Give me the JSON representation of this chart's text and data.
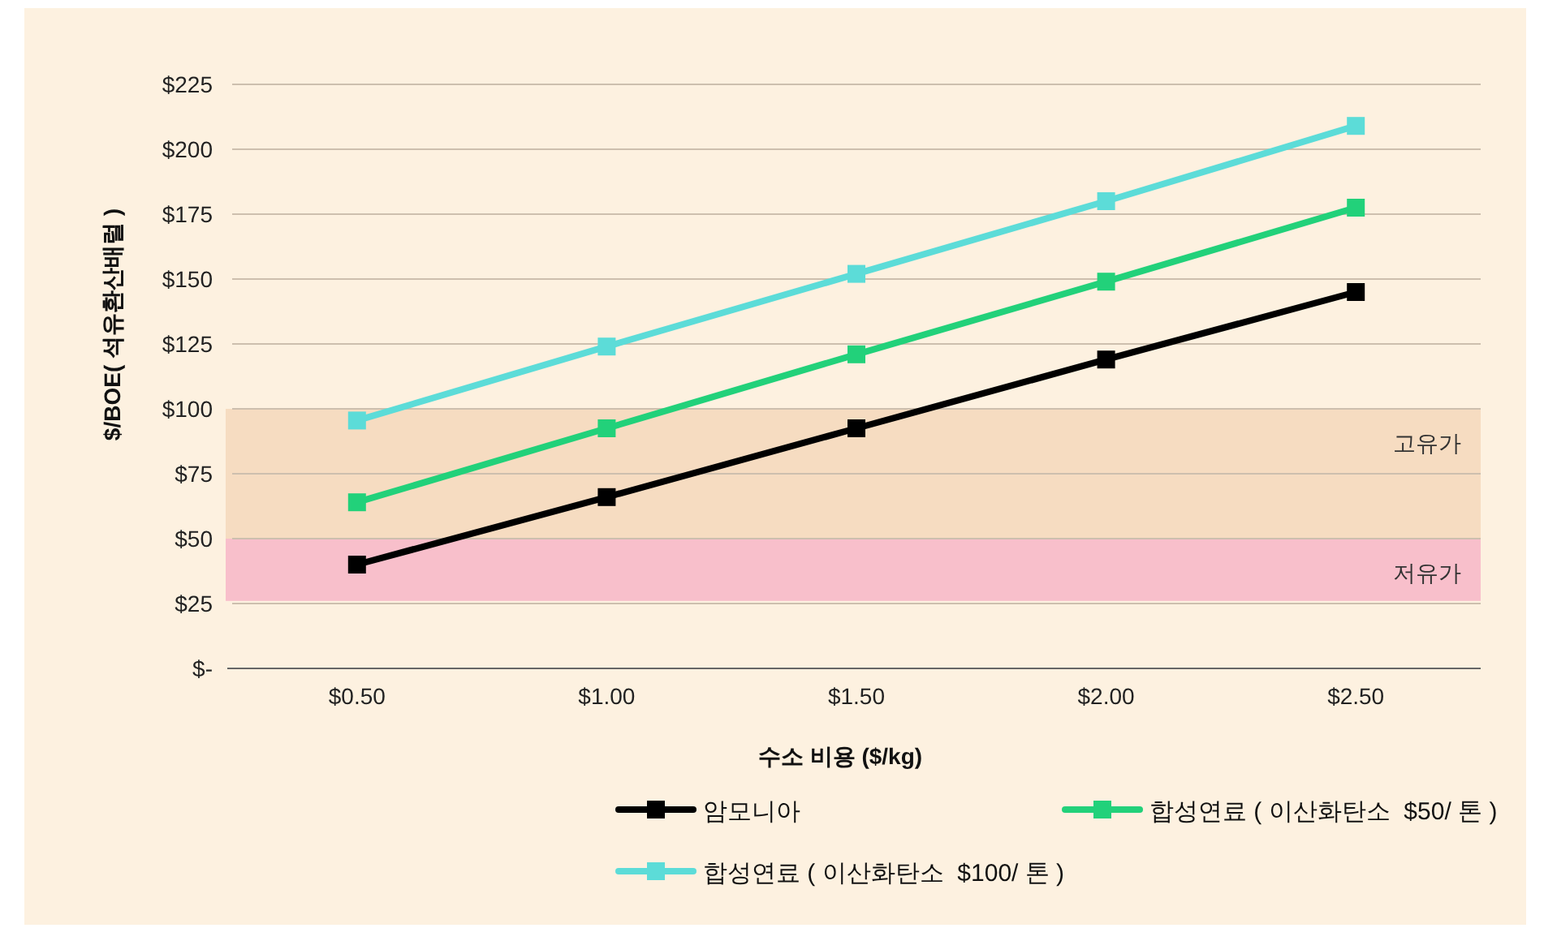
{
  "chart_data": {
    "type": "line",
    "xlabel": "수소 비용 ($/kg)",
    "ylabel": "$/BOE( 석유환산배럴 )",
    "categories": [
      "$0.50",
      "$1.00",
      "$1.50",
      "$2.00",
      "$2.50"
    ],
    "series": [
      {
        "name": "암모니아",
        "color": "#000000",
        "values": [
          40,
          66,
          92.5,
          119,
          145
        ]
      },
      {
        "name": "합성연료 ( 이산화탄소  $50/ 톤 )",
        "color": "#22d17a",
        "values": [
          64,
          92.5,
          121,
          149,
          177.5
        ]
      },
      {
        "name": "합성연료 ( 이산화탄소  $100/ 톤 )",
        "color": "#5cdcd8",
        "values": [
          95.5,
          124,
          152,
          180,
          209
        ]
      }
    ],
    "ylim": [
      0,
      225
    ],
    "yticks": [
      {
        "value": 0,
        "label": "$-"
      },
      {
        "value": 25,
        "label": "$25"
      },
      {
        "value": 50,
        "label": "$50"
      },
      {
        "value": 75,
        "label": "$75"
      },
      {
        "value": 100,
        "label": "$100"
      },
      {
        "value": 125,
        "label": "$125"
      },
      {
        "value": 150,
        "label": "$150"
      },
      {
        "value": 175,
        "label": "$175"
      },
      {
        "value": 200,
        "label": "$200"
      },
      {
        "value": 225,
        "label": "$225"
      }
    ],
    "bands": [
      {
        "axis": "y",
        "from": 50,
        "to": 100,
        "label": "고유가",
        "color": "#f6dcc1"
      },
      {
        "axis": "y",
        "from": 26,
        "to": 50,
        "label": "저유가",
        "color": "#f8bfcb"
      }
    ],
    "grid": "y",
    "marker": "square",
    "line_style": "solid",
    "legend": "bottom"
  }
}
